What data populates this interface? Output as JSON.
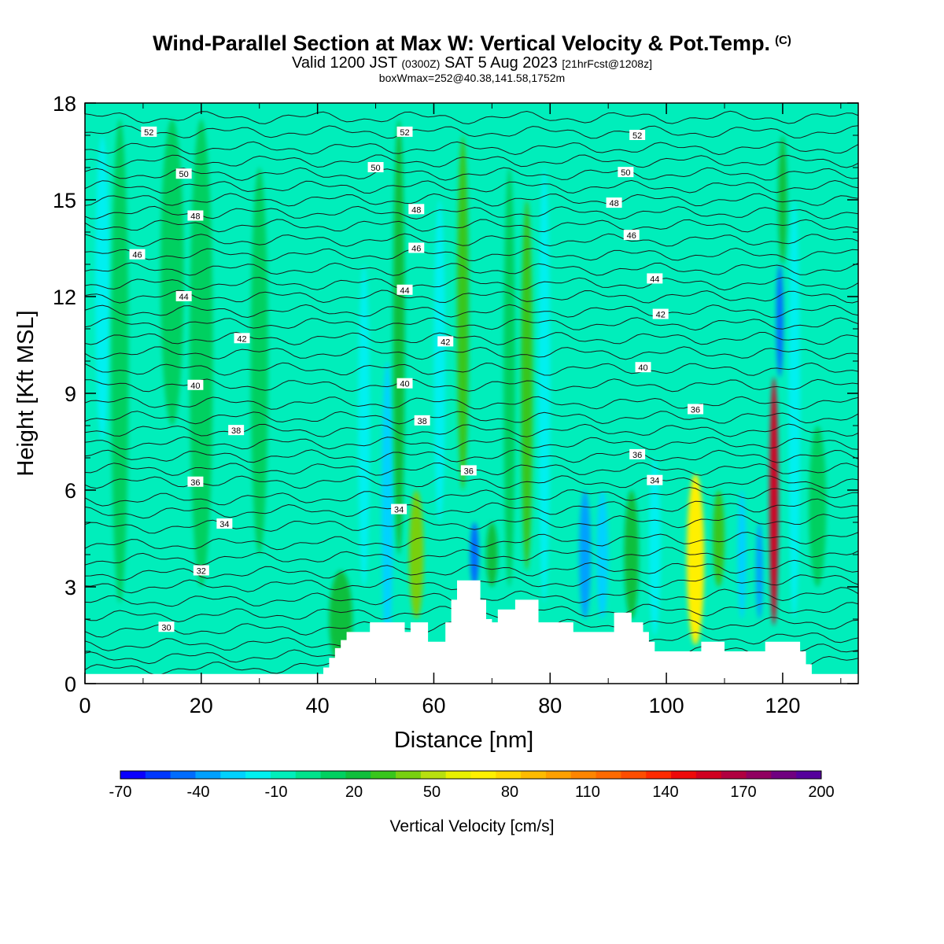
{
  "header": {
    "title": "Wind-Parallel Section at Max W: Vertical Velocity & Pot.Temp.",
    "copyright": "(C)",
    "valid_a": "Valid 1200 JST",
    "valid_b": "(0300Z)",
    "valid_c": "SAT 5 Aug 2023",
    "valid_d": "[21hrFcst@1208z]",
    "boxwmax": "boxWmax=252@40.38,141.58,1752m"
  },
  "chart_data": {
    "type": "heatmap",
    "xlabel": "Distance [nm]",
    "ylabel": "Height [Kft MSL]",
    "xlim": [
      0,
      133
    ],
    "ylim": [
      0,
      18
    ],
    "x_ticks": [
      0,
      20,
      40,
      60,
      80,
      100,
      120
    ],
    "y_ticks": [
      0,
      3,
      6,
      9,
      12,
      15,
      18
    ],
    "colorbar": {
      "label": "Vertical Velocity [cm/s]",
      "ticks": [
        -70,
        -40,
        -10,
        20,
        50,
        80,
        110,
        140,
        170,
        200
      ],
      "levels": [
        -70,
        -60,
        -50,
        -40,
        -30,
        -20,
        -10,
        0,
        10,
        20,
        30,
        40,
        50,
        60,
        70,
        80,
        90,
        100,
        110,
        120,
        130,
        140,
        150,
        160,
        170,
        180,
        190,
        200
      ],
      "colors": [
        "#0a00ff",
        "#0037ff",
        "#006cff",
        "#00a0ff",
        "#00d2ff",
        "#00f0f0",
        "#00eebb",
        "#00e28c",
        "#00d060",
        "#10bf3c",
        "#38c61c",
        "#78d010",
        "#b8e010",
        "#e8f000",
        "#fff000",
        "#ffd700",
        "#ffbb00",
        "#ffa000",
        "#ff8500",
        "#ff6a00",
        "#ff4d00",
        "#ff2a00",
        "#ee0a0a",
        "#d00020",
        "#b00040",
        "#900060",
        "#700080",
        "#55009c"
      ]
    },
    "background_value": -5,
    "vertical_velocity_features": [
      {
        "x": 3,
        "width": 2.5,
        "y_bottom": 7.5,
        "y_top": 17,
        "value": -15
      },
      {
        "x": 6,
        "width": 3,
        "y_bottom": 2.5,
        "y_top": 17.5,
        "value": 12
      },
      {
        "x": 15,
        "width": 4,
        "y_bottom": 8,
        "y_top": 17.5,
        "value": 12
      },
      {
        "x": 20,
        "width": 4,
        "y_bottom": 3,
        "y_top": 17.5,
        "value": 12
      },
      {
        "x": 30,
        "width": 3,
        "y_bottom": 4,
        "y_top": 16,
        "value": 12
      },
      {
        "x": 44,
        "width": 4,
        "y_bottom": 0.5,
        "y_top": 3.5,
        "value": 25
      },
      {
        "x": 48,
        "width": 2,
        "y_bottom": 3,
        "y_top": 13,
        "value": -18
      },
      {
        "x": 52,
        "width": 2,
        "y_bottom": 1,
        "y_top": 10,
        "value": -25
      },
      {
        "x": 54,
        "width": 2,
        "y_bottom": 4,
        "y_top": 17.5,
        "value": 20
      },
      {
        "x": 57,
        "width": 2.5,
        "y_bottom": 2,
        "y_top": 6,
        "value": 40
      },
      {
        "x": 61,
        "width": 2,
        "y_bottom": 5,
        "y_top": 15,
        "value": -20
      },
      {
        "x": 65,
        "width": 2,
        "y_bottom": 6,
        "y_top": 17,
        "value": 30
      },
      {
        "x": 67,
        "width": 1.5,
        "y_bottom": 3,
        "y_top": 5,
        "value": -50
      },
      {
        "x": 70,
        "width": 2,
        "y_bottom": 3,
        "y_top": 5,
        "value": 25
      },
      {
        "x": 73,
        "width": 2,
        "y_bottom": 3,
        "y_top": 16,
        "value": 12
      },
      {
        "x": 76,
        "width": 2,
        "y_bottom": 3.5,
        "y_top": 15,
        "value": 30
      },
      {
        "x": 79,
        "width": 2,
        "y_bottom": 2.5,
        "y_top": 16,
        "value": -20
      },
      {
        "x": 86,
        "width": 2,
        "y_bottom": 2,
        "y_top": 6,
        "value": -40
      },
      {
        "x": 89,
        "width": 2,
        "y_bottom": 2,
        "y_top": 6,
        "value": -25
      },
      {
        "x": 94,
        "width": 2.5,
        "y_bottom": 2,
        "y_top": 6,
        "value": 20
      },
      {
        "x": 98,
        "width": 2,
        "y_bottom": 1.5,
        "y_top": 7,
        "value": -15
      },
      {
        "x": 105,
        "width": 3,
        "y_bottom": 1.2,
        "y_top": 6.5,
        "value": 75
      },
      {
        "x": 109,
        "width": 2,
        "y_bottom": 3,
        "y_top": 6,
        "value": 30
      },
      {
        "x": 113,
        "width": 1.5,
        "y_bottom": 2,
        "y_top": 6,
        "value": -25
      },
      {
        "x": 116,
        "width": 1.2,
        "y_bottom": 2,
        "y_top": 5,
        "value": -40
      },
      {
        "x": 118.5,
        "width": 1.5,
        "y_bottom": 1.8,
        "y_top": 9.5,
        "value": 160
      },
      {
        "x": 119.5,
        "width": 1.2,
        "y_bottom": 9.5,
        "y_top": 13,
        "value": -50
      },
      {
        "x": 120,
        "width": 1.5,
        "y_bottom": 13,
        "y_top": 17,
        "value": 25
      },
      {
        "x": 122,
        "width": 2,
        "y_bottom": 2,
        "y_top": 15,
        "value": -15
      },
      {
        "x": 126,
        "width": 3,
        "y_bottom": 3,
        "y_top": 8,
        "value": 12
      }
    ],
    "terrain": [
      [
        0,
        0.3
      ],
      [
        40,
        0.3
      ],
      [
        41,
        0.5
      ],
      [
        42,
        0.8
      ],
      [
        43,
        1.1
      ],
      [
        44,
        1.35
      ],
      [
        45,
        1.6
      ],
      [
        48,
        1.6
      ],
      [
        49,
        1.9
      ],
      [
        54,
        1.9
      ],
      [
        55,
        1.6
      ],
      [
        56,
        1.9
      ],
      [
        58,
        1.9
      ],
      [
        59,
        1.3
      ],
      [
        61,
        1.3
      ],
      [
        62,
        1.9
      ],
      [
        63,
        2.6
      ],
      [
        64,
        3.2
      ],
      [
        67,
        3.2
      ],
      [
        68,
        2.6
      ],
      [
        69,
        2.0
      ],
      [
        70,
        1.9
      ],
      [
        71,
        2.3
      ],
      [
        74,
        2.6
      ],
      [
        77,
        2.6
      ],
      [
        78,
        1.9
      ],
      [
        83,
        1.9
      ],
      [
        84,
        1.6
      ],
      [
        90,
        1.6
      ],
      [
        91,
        2.2
      ],
      [
        93,
        2.2
      ],
      [
        94,
        1.9
      ],
      [
        96,
        1.6
      ],
      [
        97,
        1.3
      ],
      [
        98,
        1.0
      ],
      [
        105,
        1.0
      ],
      [
        106,
        1.3
      ],
      [
        109,
        1.3
      ],
      [
        110,
        1.0
      ],
      [
        116,
        1.0
      ],
      [
        117,
        1.3
      ],
      [
        122,
        1.3
      ],
      [
        123,
        1.0
      ],
      [
        124,
        0.6
      ],
      [
        125,
        0.3
      ],
      [
        133,
        0.3
      ]
    ],
    "potential_temperature_contours": {
      "unit": "C",
      "labels": [
        {
          "text": "52",
          "x": 11,
          "y": 17.1
        },
        {
          "text": "52",
          "x": 55,
          "y": 17.1
        },
        {
          "text": "52",
          "x": 95,
          "y": 17.0
        },
        {
          "text": "50",
          "x": 17,
          "y": 15.8
        },
        {
          "text": "50",
          "x": 50,
          "y": 16.0
        },
        {
          "text": "50",
          "x": 93,
          "y": 15.85
        },
        {
          "text": "48",
          "x": 19,
          "y": 14.5
        },
        {
          "text": "48",
          "x": 57,
          "y": 14.7
        },
        {
          "text": "48",
          "x": 91,
          "y": 14.9
        },
        {
          "text": "46",
          "x": 9,
          "y": 13.3
        },
        {
          "text": "46",
          "x": 57,
          "y": 13.5
        },
        {
          "text": "46",
          "x": 94,
          "y": 13.9
        },
        {
          "text": "44",
          "x": 17,
          "y": 12.0
        },
        {
          "text": "44",
          "x": 55,
          "y": 12.2
        },
        {
          "text": "44",
          "x": 98,
          "y": 12.55
        },
        {
          "text": "42",
          "x": 27,
          "y": 10.7
        },
        {
          "text": "42",
          "x": 62,
          "y": 10.6
        },
        {
          "text": "42",
          "x": 99,
          "y": 11.45
        },
        {
          "text": "40",
          "x": 19,
          "y": 9.25
        },
        {
          "text": "40",
          "x": 55,
          "y": 9.3
        },
        {
          "text": "40",
          "x": 96,
          "y": 9.8
        },
        {
          "text": "38",
          "x": 26,
          "y": 7.85
        },
        {
          "text": "38",
          "x": 58,
          "y": 8.15
        },
        {
          "text": "36",
          "x": 105,
          "y": 8.5
        },
        {
          "text": "36",
          "x": 19,
          "y": 6.25
        },
        {
          "text": "36",
          "x": 66,
          "y": 6.6
        },
        {
          "text": "36",
          "x": 95,
          "y": 7.1
        },
        {
          "text": "34",
          "x": 24,
          "y": 4.95
        },
        {
          "text": "34",
          "x": 54,
          "y": 5.4
        },
        {
          "text": "34",
          "x": 98,
          "y": 6.3
        },
        {
          "text": "32",
          "x": 20,
          "y": 3.5
        },
        {
          "text": "30",
          "x": 14,
          "y": 1.75
        }
      ],
      "line_heights": [
        0.55,
        0.9,
        1.3,
        1.75,
        2.2,
        2.65,
        3.1,
        3.5,
        3.95,
        4.4,
        4.95,
        5.4,
        5.8,
        6.25,
        6.65,
        7.05,
        7.45,
        7.85,
        8.25,
        8.7,
        9.25,
        9.75,
        10.25,
        10.7,
        11.15,
        11.55,
        12.0,
        12.4,
        12.85,
        13.3,
        13.75,
        14.2,
        14.6,
        15.0,
        15.4,
        15.8,
        16.2,
        16.6,
        17.1,
        17.55
      ]
    }
  }
}
